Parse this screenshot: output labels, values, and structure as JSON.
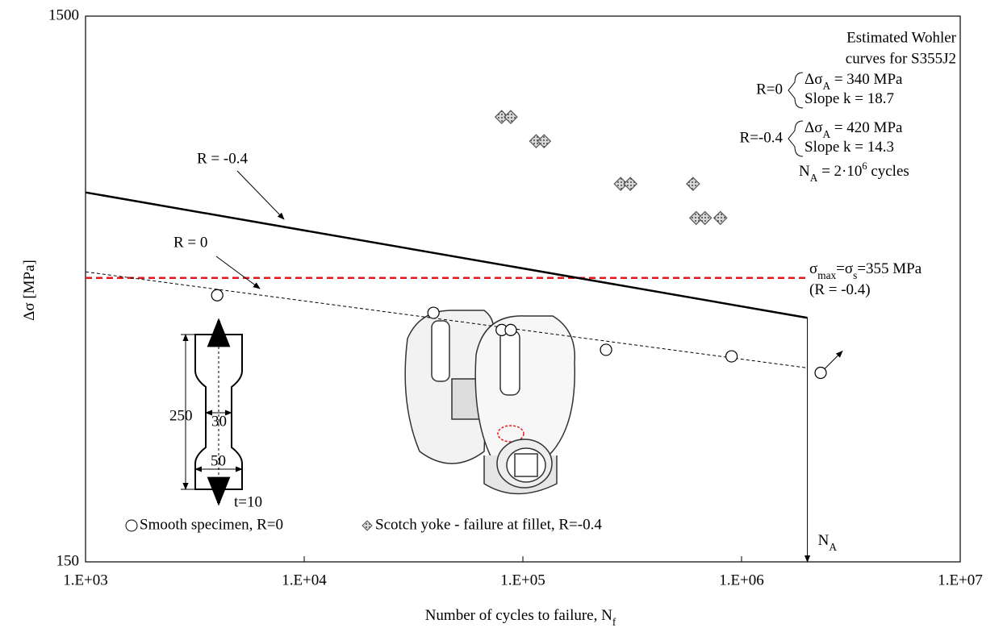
{
  "chart_data": {
    "type": "scatter",
    "x_label": [
      {
        "text": "Number of cycles to failure, N"
      },
      {
        "sub": "f"
      }
    ],
    "y_label": [
      {
        "text": "Δσ [MPa]"
      }
    ],
    "xscale": "log",
    "yscale": "log",
    "xlim": [
      1000,
      10000000
    ],
    "ylim": [
      150,
      1500
    ],
    "xticks": [
      {
        "value": 1000,
        "label": "1.E+03"
      },
      {
        "value": 10000,
        "label": "1.E+04"
      },
      {
        "value": 100000,
        "label": "1.E+05"
      },
      {
        "value": 1000000,
        "label": "1.E+06"
      },
      {
        "value": 10000000,
        "label": "1.E+07"
      }
    ],
    "yticks": [
      150,
      1500
    ],
    "series": [
      {
        "name": "Smooth specimen, R=0",
        "marker": "circle",
        "color": "#000000",
        "x": [
          4000,
          39000,
          80000,
          88000,
          240000,
          900000,
          2300000
        ],
        "values": [
          462,
          429,
          399,
          399,
          367,
          357,
          333
        ]
      },
      {
        "name": "Scotch yoke - failure at fillet, R=-0.4",
        "marker": "diamond",
        "color": "#555555",
        "x": [
          80000,
          88000,
          115000,
          125000,
          280000,
          310000,
          600000,
          620000,
          680000,
          800000
        ],
        "values": [
          980,
          980,
          885,
          885,
          739,
          739,
          739,
          640,
          640,
          640
        ]
      }
    ],
    "lines": [
      {
        "label": "R = -0.4",
        "x": [
          1000,
          2000000
        ],
        "values": [
          713,
          420
        ],
        "style": "solid",
        "color": "#000000"
      },
      {
        "label": "R = 0",
        "x": [
          1000,
          2000000
        ],
        "values": [
          510,
          340
        ],
        "style": "dashed",
        "color": "#000000"
      }
    ],
    "hline": {
      "value": 497,
      "color": "#e8161b",
      "labels": [
        [
          {
            "text": "σ"
          },
          {
            "sub": "max"
          },
          {
            "text": "=σ"
          },
          {
            "sub": "s"
          },
          {
            "text": "=355 MPa"
          }
        ],
        [
          {
            "text": "(R = -0.4)"
          }
        ]
      ]
    },
    "vline": {
      "x": 2000000,
      "label": [
        {
          "text": "N"
        },
        {
          "sub": "A"
        }
      ]
    },
    "info": {
      "title": [
        "Estimated Wohler",
        "curves for S355J2"
      ],
      "groups": [
        {
          "label": "R=0",
          "lines": [
            [
              {
                "text": "Δσ"
              },
              {
                "sub": "A"
              },
              {
                "text": " = 340 MPa"
              }
            ],
            [
              {
                "text": "Slope k = 18.7"
              }
            ]
          ]
        },
        {
          "label": "R=-0.4",
          "lines": [
            [
              {
                "text": "Δσ"
              },
              {
                "sub": "A"
              },
              {
                "text": " = 420 MPa"
              }
            ],
            [
              {
                "text": "Slope k = 14.3"
              }
            ]
          ]
        }
      ],
      "footer": [
        {
          "text": "N"
        },
        {
          "sub": "A"
        },
        {
          "text": " = 2·10"
        },
        {
          "sup": "6"
        },
        {
          "text": " cycles"
        }
      ]
    },
    "specimen": {
      "length": "250",
      "neck": "30",
      "width": "50",
      "thickness": "t=10"
    }
  }
}
